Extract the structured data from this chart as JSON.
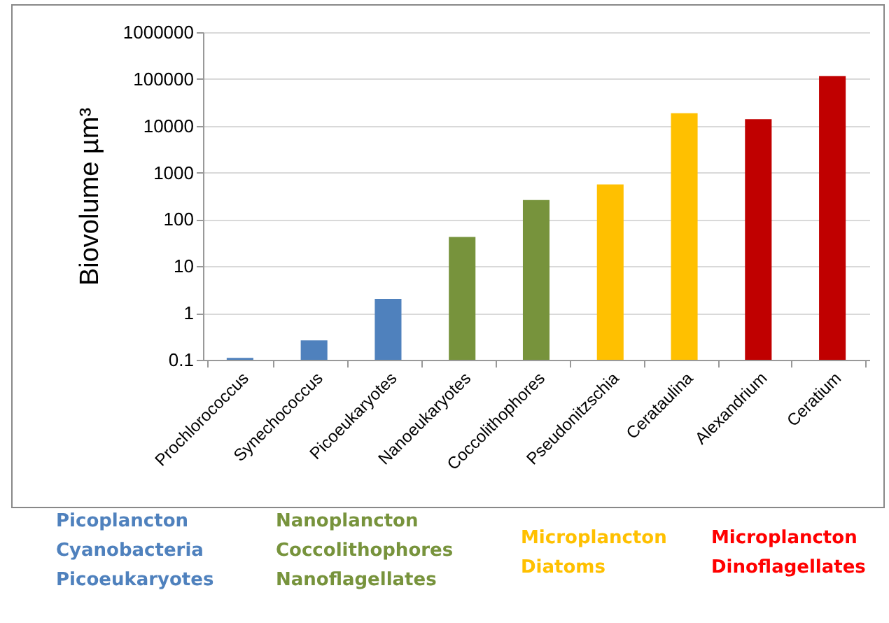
{
  "chart_data": {
    "type": "bar",
    "ylabel": "Biovolume µm³",
    "categories": [
      "Prochlorococcus",
      "Synechococcus",
      "Picoeukaryotes",
      "Nanoeukaryotes",
      "Coccolithophores",
      "Pseudonitzschia",
      "Cerataulina",
      "Alexandrium",
      "Ceratium"
    ],
    "values": [
      0.11,
      0.26,
      2,
      42,
      260,
      560,
      18600,
      13800,
      115000
    ],
    "colors": [
      "#4f81bd",
      "#4f81bd",
      "#4f81bd",
      "#77933c",
      "#77933c",
      "#ffc000",
      "#ffc000",
      "#c00000",
      "#c00000"
    ],
    "log": true,
    "ylim": [
      0.1,
      1000000
    ],
    "yticks": [
      0.1,
      1,
      10,
      100,
      1000,
      10000,
      100000,
      1000000
    ],
    "grid": "y",
    "legend": false,
    "annotations": [
      "Picoplancton\nCyanobacteria\nPicoeukaryotes",
      "Nanoplancton\nCoccolithophores\nNanoflagellates",
      "Microplancton\nDiatoms",
      "Microplancton\nDinoflagellates"
    ]
  }
}
